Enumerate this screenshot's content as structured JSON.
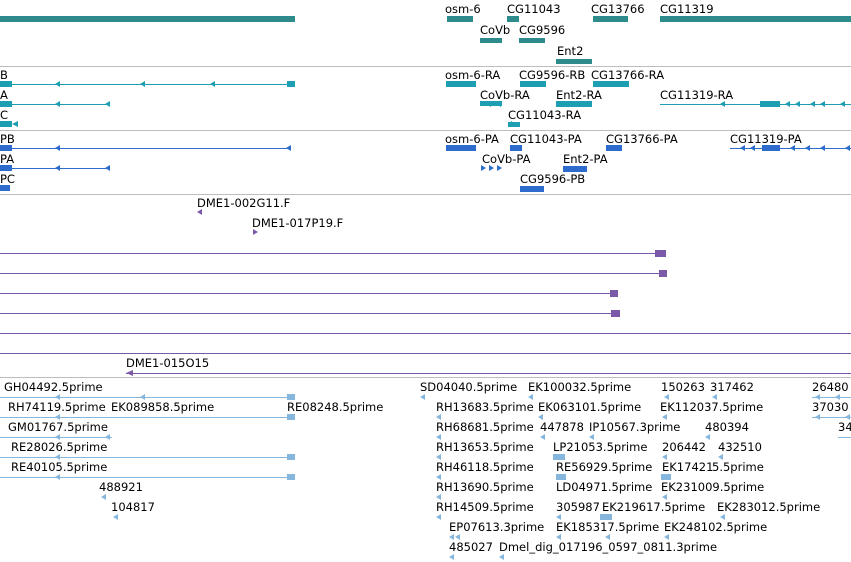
{
  "colors": {
    "gene": "#2e8b8b",
    "transcript": "#1e9eb2",
    "protein": "#2d6bcc",
    "clone": "#7a5aa8",
    "est": "#86b6dc",
    "separator": "#bdbdbd"
  },
  "gene_track": {
    "labels": [
      "osm-6",
      "CG11043",
      "CG13766",
      "CG11319",
      "CoVb",
      "CG9596",
      "Ent2"
    ]
  },
  "transcript_track": {
    "labels": [
      "B",
      "A",
      "C",
      "osm-6-RA",
      "CG9596-RB",
      "CG13766-RA",
      "CoVb-RA",
      "Ent2-RA",
      "CG11319-RA",
      "CG11043-RA"
    ]
  },
  "protein_track": {
    "labels": [
      "PB",
      "PA",
      "PC",
      "osm-6-PA",
      "CG11043-PA",
      "CG13766-PA",
      "CG11319-PA",
      "CoVb-PA",
      "Ent2-PA",
      "CG9596-PB"
    ]
  },
  "clone_track": {
    "labels": [
      "DME1-002G11.F",
      "DME1-017P19.F",
      "DME1-015O15"
    ]
  },
  "est_track": {
    "labels": [
      "GH04492.5prime",
      "SD04040.5prime",
      "EK100032.5prime",
      "150263",
      "317462",
      "26480",
      "RH74119.5prime",
      "EK089858.5prime",
      "RE08248.5prime",
      "RH13683.5prime",
      "EK063101.5prime",
      "EK112037.5prime",
      "37030",
      "GM01767.5prime",
      "RH68681.5prime",
      "447878",
      "IP10567.3prime",
      "480394",
      "34",
      "RE28026.5prime",
      "RH13653.5prime",
      "LP21053.5prime",
      "206442",
      "432510",
      "RE40105.5prime",
      "RH46118.5prime",
      "RE56929.5prime",
      "EK17421",
      "5.5prime",
      "488921",
      "RH13690.5prime",
      "LD04971.5prime",
      "EK231009.5prime",
      "104817",
      "RH14509.5prime",
      "305987",
      "EK219617.5prime",
      "EK283012.5prime",
      "EP07613.3prime",
      "EK185317.5prime",
      "EK248102.5prime",
      "485027",
      "Dmel_dig_017196_0597_0811.3prime"
    ]
  }
}
